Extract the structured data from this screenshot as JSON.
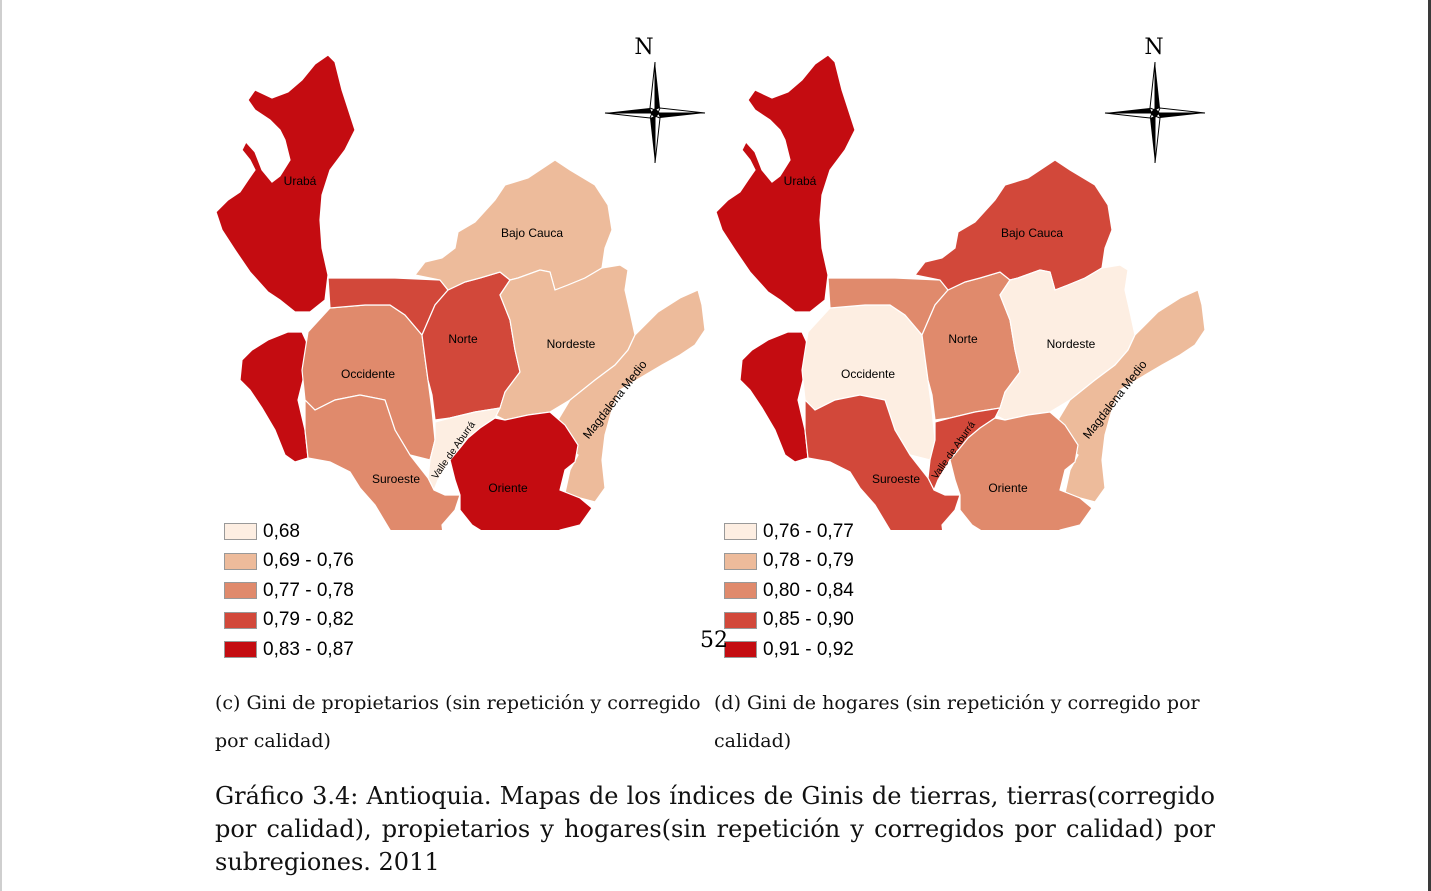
{
  "maps": [
    {
      "north_label": "N",
      "regions": {
        "uraba": {
          "label": "Urabá",
          "color": "#c40c11"
        },
        "bajo_cauca": {
          "label": "Bajo Cauca",
          "color": "#edbb9b"
        },
        "norte": {
          "label": "Norte",
          "color": "#d2483a"
        },
        "nordeste": {
          "label": "Nordeste",
          "color": "#edbb9b"
        },
        "occidente": {
          "label": "Occidente",
          "color": "#e08a6c"
        },
        "magdalena_medio": {
          "label": "Magdalena Medio",
          "color": "#edbb9b"
        },
        "valle_aburra": {
          "label": "Valle de Aburrá",
          "color": "#fdeee2"
        },
        "suroeste": {
          "label": "Suroeste",
          "color": "#e08a6c"
        },
        "oriente": {
          "label": "Oriente",
          "color": "#c40c11"
        },
        "west_strip": {
          "color": "#c40c11"
        }
      },
      "legend": [
        {
          "label": "0,68",
          "color": "#fdeee2"
        },
        {
          "label": "0,69 - 0,76",
          "color": "#edbb9b"
        },
        {
          "label": "0,77 - 0,78",
          "color": "#e08a6c"
        },
        {
          "label": "0,79 - 0,82",
          "color": "#d2483a"
        },
        {
          "label": "0,83 - 0,87",
          "color": "#c40c11"
        }
      ],
      "caption": "(c) Gini de propietarios (sin repetición y corregido por calidad)"
    },
    {
      "north_label": "N",
      "regions": {
        "uraba": {
          "label": "Urabá",
          "color": "#c40c11"
        },
        "bajo_cauca": {
          "label": "Bajo Cauca",
          "color": "#d2483a"
        },
        "norte": {
          "label": "Norte",
          "color": "#e08a6c"
        },
        "nordeste": {
          "label": "Nordeste",
          "color": "#fdeee2"
        },
        "occidente": {
          "label": "Occidente",
          "color": "#fdeee2"
        },
        "magdalena_medio": {
          "label": "Magdalena Medio",
          "color": "#edbb9b"
        },
        "valle_aburra": {
          "label": "Valle de Aburrá",
          "color": "#d2483a"
        },
        "suroeste": {
          "label": "Suroeste",
          "color": "#d2483a"
        },
        "oriente": {
          "label": "Oriente",
          "color": "#e08a6c"
        },
        "west_strip": {
          "color": "#c40c11"
        }
      },
      "legend": [
        {
          "label": "0,76 - 0,77",
          "color": "#fdeee2"
        },
        {
          "label": "0,78 - 0,79",
          "color": "#edbb9b"
        },
        {
          "label": "0,80 - 0,84",
          "color": "#e08a6c"
        },
        {
          "label": "0,85 - 0,90",
          "color": "#d2483a"
        },
        {
          "label": "0,91 - 0,92",
          "color": "#c40c11"
        }
      ],
      "caption": "(d) Gini de hogares (sin repetición y corregido por calidad)"
    }
  ],
  "page_number": "52",
  "figure_caption": "Gráfico 3.4: Antioquia. Mapas de los índices de Ginis de tierras, tierras(corregido por calidad), propietarios y hogares(sin repetición y corregidos por calidad) por subregiones. 2011"
}
